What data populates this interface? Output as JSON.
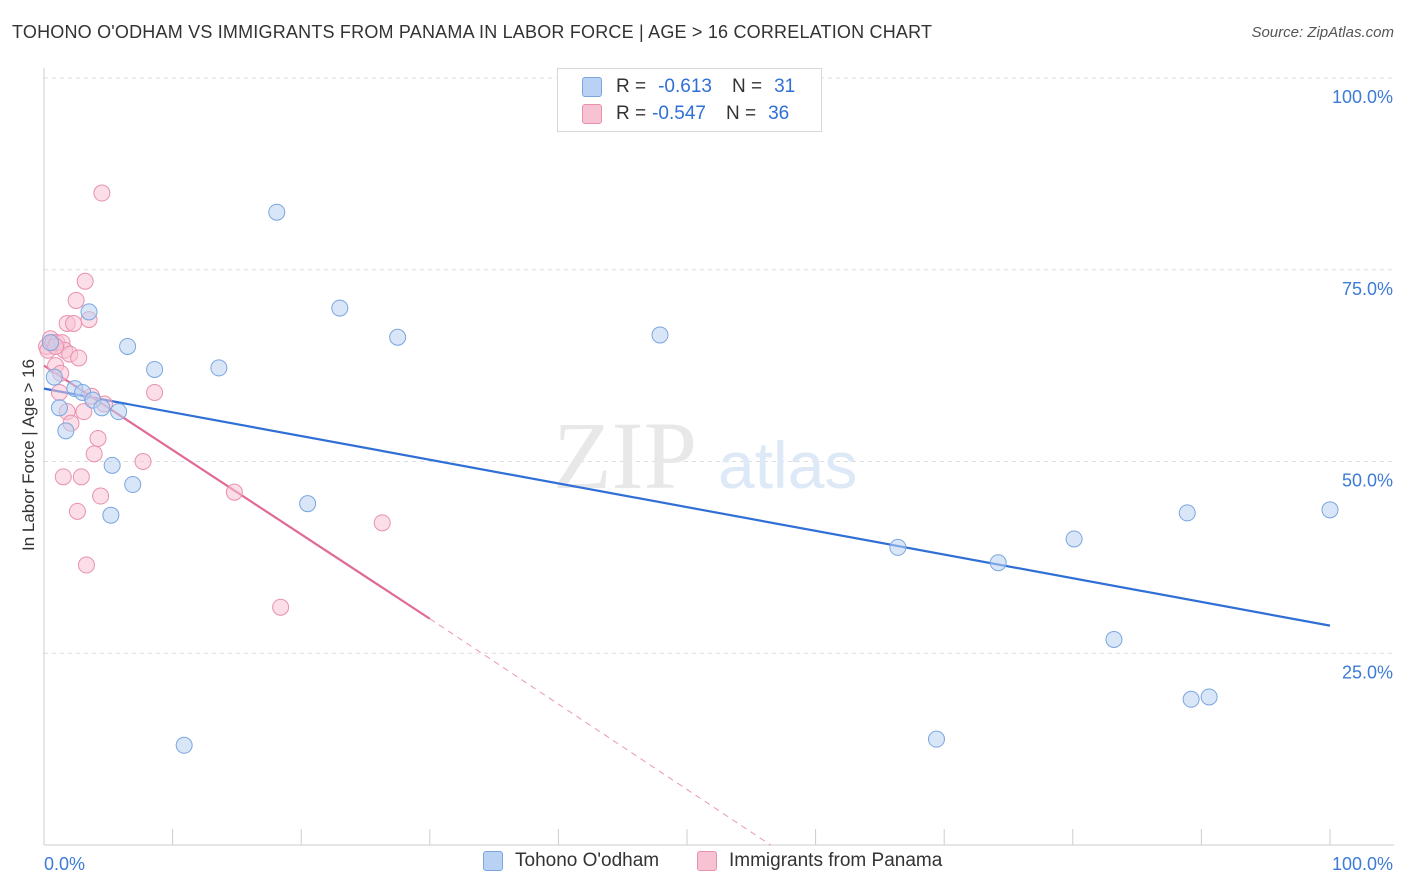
{
  "header": {
    "title": "TOHONO O'ODHAM VS IMMIGRANTS FROM PANAMA IN LABOR FORCE | AGE > 16 CORRELATION CHART",
    "source": "Source: ZipAtlas.com"
  },
  "legend": {
    "rows": [
      {
        "r_label": "R =",
        "r_value": "-0.613",
        "n_label": "N =",
        "n_value": "31"
      },
      {
        "r_label": "R =",
        "r_value": "-0.547",
        "n_label": "N =",
        "n_value": "36"
      }
    ]
  },
  "watermark": {
    "zip": "ZIP",
    "atlas": "atlas"
  },
  "colors": {
    "blue_fill": "#b9d2f3",
    "blue_stroke": "#7aa6e0",
    "blue_line": "#2f6fd6",
    "pink_fill": "#f7c3d3",
    "pink_stroke": "#e891ae",
    "pink_line": "#e06a97",
    "axis_text": "#3d7bd6",
    "grid": "#dddddd"
  },
  "chart_data": {
    "type": "scatter",
    "title": "TOHONO O'ODHAM VS IMMIGRANTS FROM PANAMA IN LABOR FORCE | AGE > 16 CORRELATION CHART",
    "ylabel": "In Labor Force | Age > 16",
    "xlabel": "",
    "xlim": [
      0,
      100
    ],
    "ylim": [
      0,
      100
    ],
    "x_tick_labels": [
      "0.0%",
      "100.0%"
    ],
    "y_ticks": [
      25,
      50,
      75,
      100
    ],
    "y_tick_labels": [
      "25.0%",
      "50.0%",
      "75.0%",
      "100.0%"
    ],
    "grid": true,
    "legend_position": "bottom",
    "series": [
      {
        "name": "Tohono O'odham",
        "color": "#b9d2f3",
        "points": [
          [
            0.8,
            61
          ],
          [
            1.2,
            57
          ],
          [
            1.7,
            54
          ],
          [
            2.4,
            59.5
          ],
          [
            3.0,
            59
          ],
          [
            3.5,
            69.5
          ],
          [
            3.8,
            58
          ],
          [
            4.5,
            57
          ],
          [
            5.2,
            43
          ],
          [
            5.3,
            49.5
          ],
          [
            5.8,
            56.5
          ],
          [
            6.5,
            65
          ],
          [
            6.9,
            47
          ],
          [
            8.6,
            62
          ],
          [
            10.9,
            13
          ],
          [
            13.6,
            62.2
          ],
          [
            18.1,
            82.5
          ],
          [
            20.5,
            44.5
          ],
          [
            23.0,
            70
          ],
          [
            27.5,
            66.2
          ],
          [
            47.9,
            66.5
          ],
          [
            66.4,
            38.8
          ],
          [
            69.4,
            13.8
          ],
          [
            74.2,
            36.8
          ],
          [
            80.1,
            39.9
          ],
          [
            83.2,
            26.8
          ],
          [
            88.9,
            43.3
          ],
          [
            89.2,
            19
          ],
          [
            90.6,
            19.3
          ],
          [
            100.0,
            43.7
          ],
          [
            0.5,
            65.5
          ]
        ],
        "trend": {
          "x": [
            0,
            100
          ],
          "y": [
            59.5,
            28.6
          ]
        }
      },
      {
        "name": "Immigrants from Panama",
        "color": "#f7c3d3",
        "points": [
          [
            0.2,
            65
          ],
          [
            0.3,
            64.5
          ],
          [
            0.5,
            66
          ],
          [
            0.7,
            65.5
          ],
          [
            0.9,
            62.5
          ],
          [
            1.0,
            65.5
          ],
          [
            1.2,
            59
          ],
          [
            1.3,
            61.5
          ],
          [
            1.4,
            65.5
          ],
          [
            1.5,
            48
          ],
          [
            1.6,
            64.5
          ],
          [
            1.8,
            68
          ],
          [
            1.8,
            56.5
          ],
          [
            2.0,
            64
          ],
          [
            2.1,
            55
          ],
          [
            2.3,
            68
          ],
          [
            2.5,
            71
          ],
          [
            2.6,
            43.5
          ],
          [
            2.7,
            63.5
          ],
          [
            2.9,
            48
          ],
          [
            3.1,
            56.5
          ],
          [
            3.2,
            73.5
          ],
          [
            3.3,
            36.5
          ],
          [
            3.5,
            68.5
          ],
          [
            3.7,
            58.5
          ],
          [
            3.9,
            51
          ],
          [
            4.2,
            53
          ],
          [
            4.4,
            45.5
          ],
          [
            4.5,
            85
          ],
          [
            4.7,
            57.5
          ],
          [
            7.7,
            50
          ],
          [
            8.6,
            59
          ],
          [
            14.8,
            46
          ],
          [
            18.4,
            31
          ],
          [
            26.3,
            42
          ],
          [
            0.9,
            65
          ]
        ],
        "trend": {
          "x": [
            0,
            30
          ],
          "y": [
            62.5,
            29.5
          ]
        },
        "trend_dashed": {
          "x": [
            30,
            56.5
          ],
          "y": [
            29.5,
            0
          ]
        }
      }
    ]
  },
  "bottom_legend": [
    "Tohono O'odham",
    "Immigrants from Panama"
  ]
}
